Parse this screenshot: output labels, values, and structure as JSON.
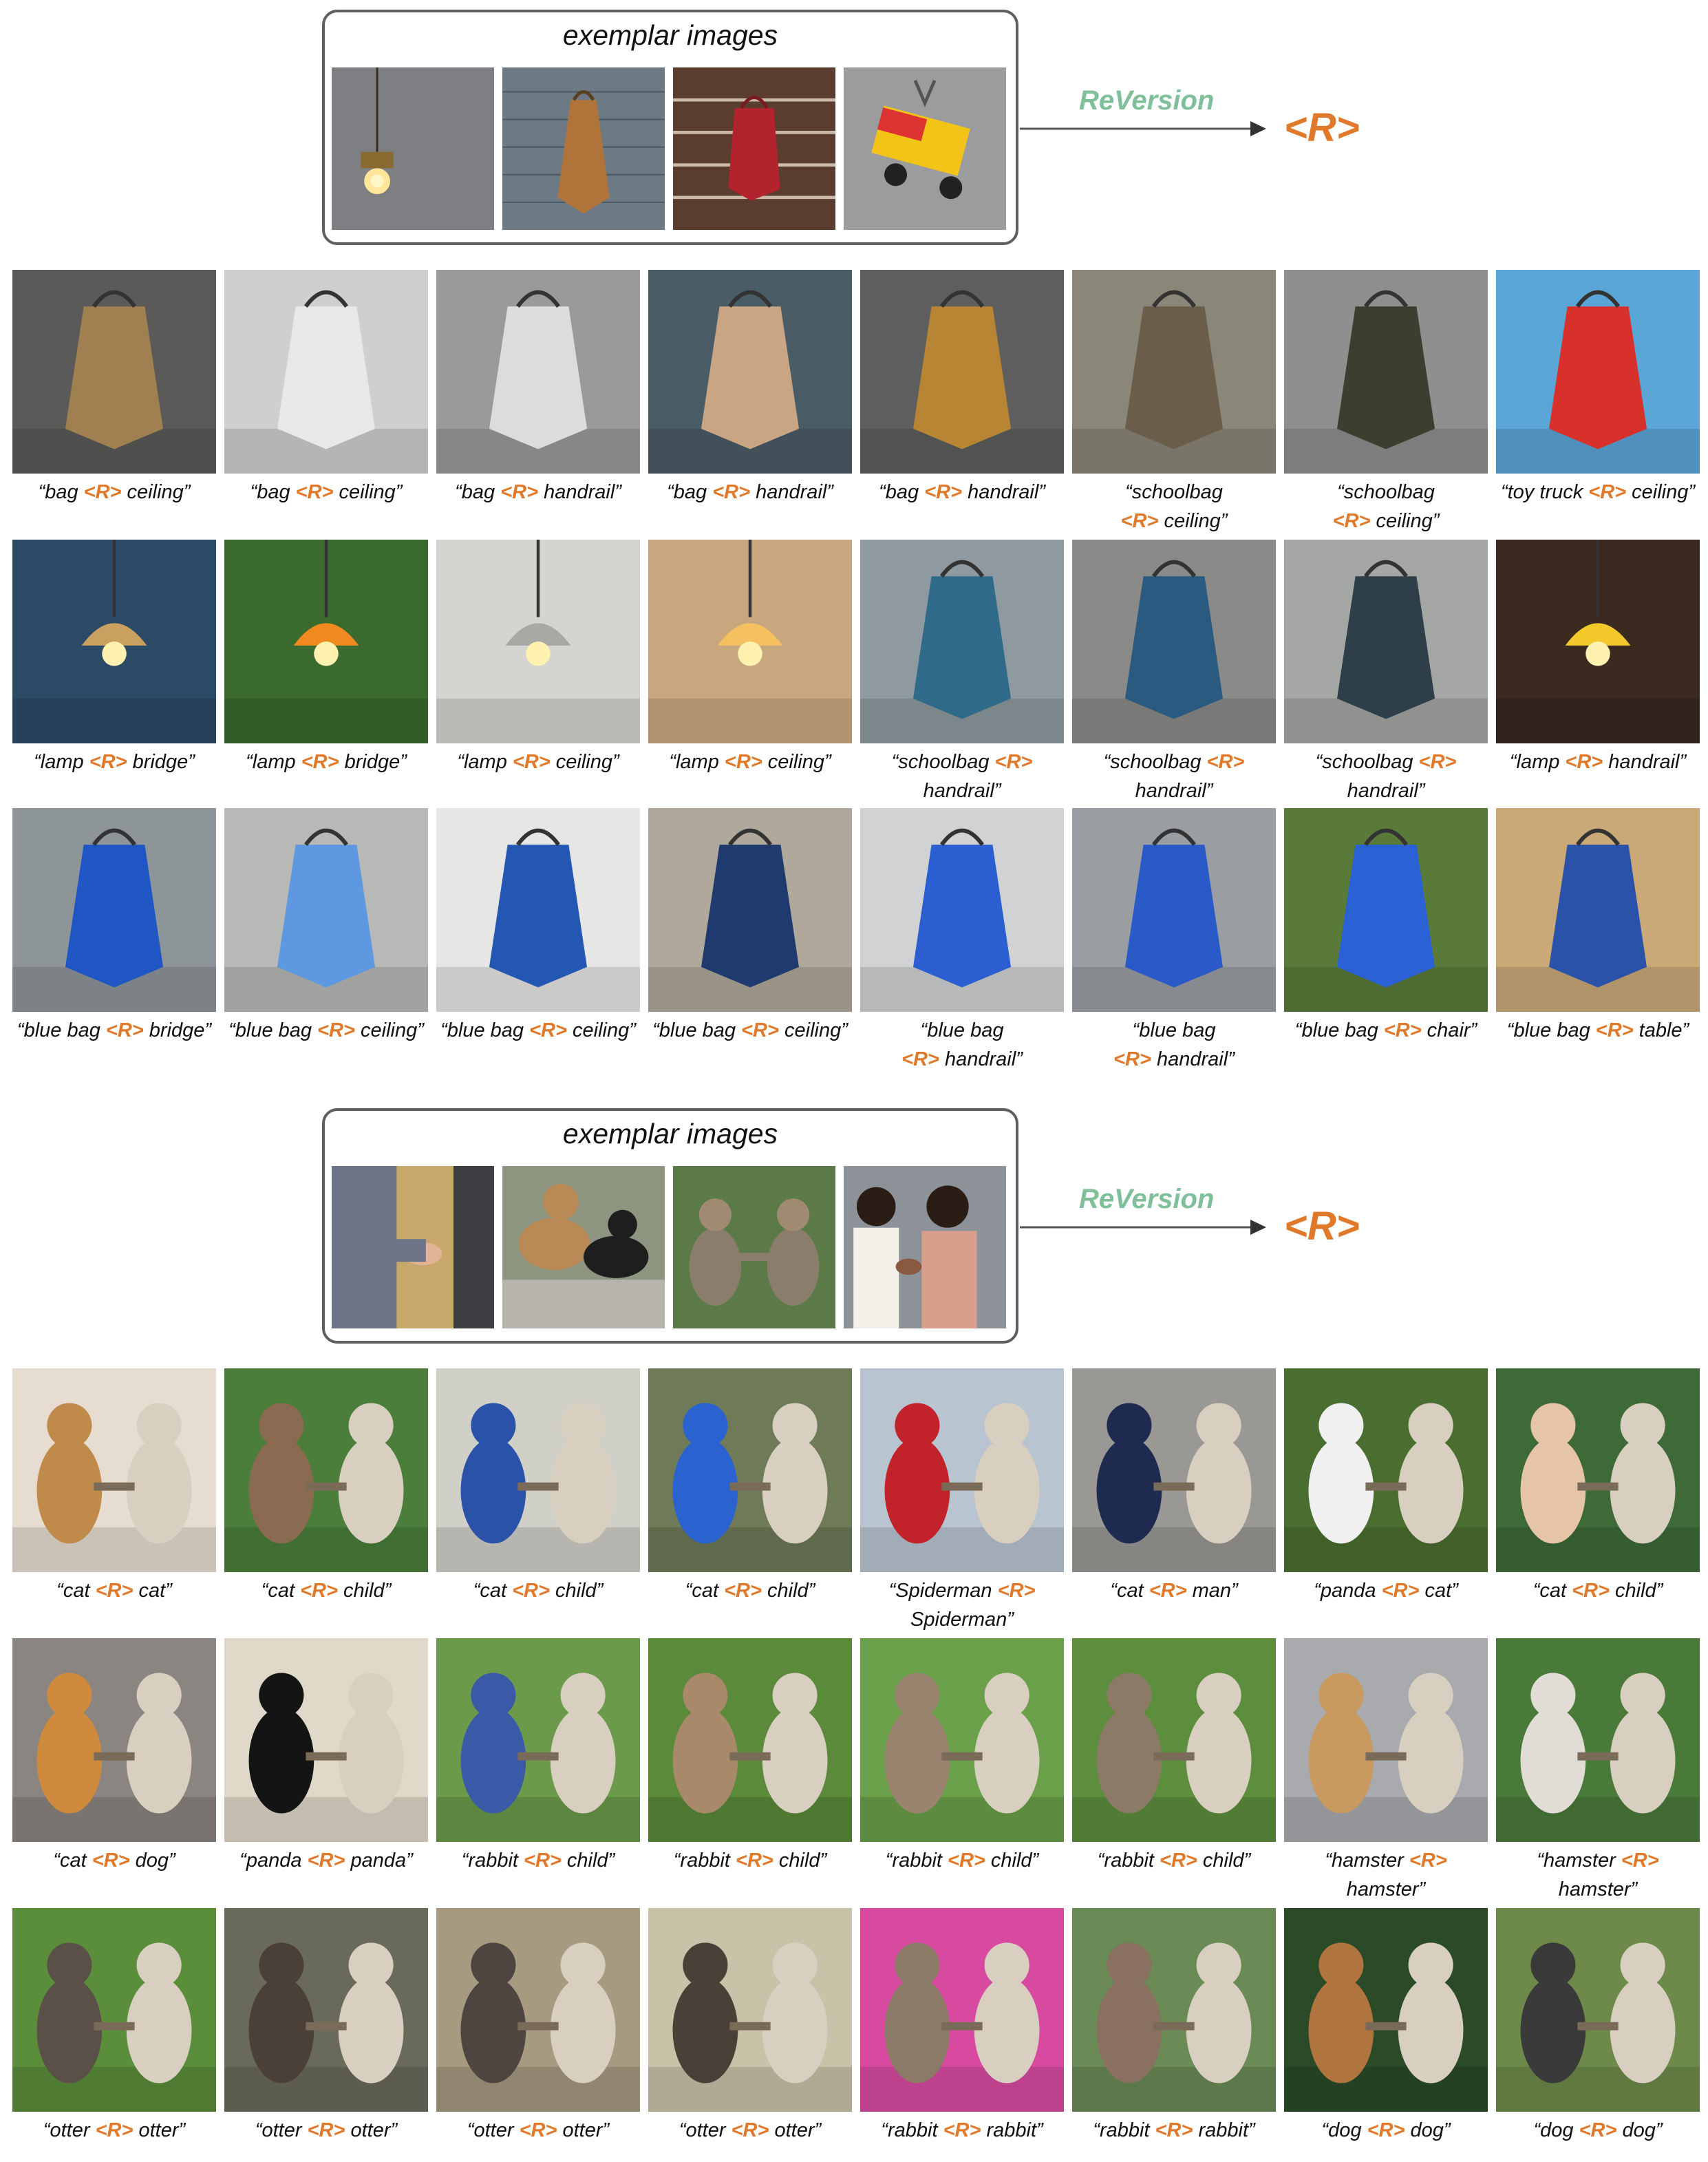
{
  "token": "<R>",
  "method": "ReVersion",
  "colors": {
    "accent": "#e07a2a",
    "method": "#7fbf9a"
  },
  "panels": [
    {
      "exemplar_title": "exemplar images",
      "exemplars": [
        "pendant lamp",
        "brown bag on wall",
        "red bag on fence",
        "toy truck hanging"
      ],
      "rows": [
        [
          {
            "a": "“bag ",
            "b": " ceiling”"
          },
          {
            "a": "“bag ",
            "b": " ceiling”"
          },
          {
            "a": "“bag ",
            "b": " handrail”"
          },
          {
            "a": "“bag ",
            "b": " handrail”"
          },
          {
            "a": "“bag ",
            "b": " handrail”"
          },
          {
            "a": "“schoolbag\n",
            "b": " ceiling”"
          },
          {
            "a": "“schoolbag\n",
            "b": " ceiling”"
          },
          {
            "a": "“toy truck ",
            "b": " ceiling”"
          }
        ],
        [
          {
            "a": "“lamp ",
            "b": " bridge”"
          },
          {
            "a": "“lamp ",
            "b": " bridge”"
          },
          {
            "a": "“lamp ",
            "b": " ceiling”"
          },
          {
            "a": "“lamp ",
            "b": " ceiling”"
          },
          {
            "a": "“schoolbag ",
            "b": "\nhandrail”"
          },
          {
            "a": "“schoolbag ",
            "b": "\nhandrail”"
          },
          {
            "a": "“schoolbag ",
            "b": "\nhandrail”"
          },
          {
            "a": "“lamp ",
            "b": " handrail”"
          }
        ],
        [
          {
            "a": "“blue bag ",
            "b": " bridge”"
          },
          {
            "a": "“blue bag ",
            "b": " ceiling”"
          },
          {
            "a": "“blue bag ",
            "b": " ceiling”"
          },
          {
            "a": "“blue bag ",
            "b": " ceiling”"
          },
          {
            "a": "“blue bag\n",
            "b": " handrail”"
          },
          {
            "a": "“blue bag\n",
            "b": " handrail”"
          },
          {
            "a": "“blue bag ",
            "b": " chair”"
          },
          {
            "a": "“blue bag ",
            "b": " table”"
          }
        ]
      ]
    },
    {
      "exemplar_title": "exemplar images",
      "exemplars": [
        "men shaking hands",
        "dogs shaking paws",
        "monkeys shaking hands",
        "women shaking hands"
      ],
      "rows": [
        [
          {
            "a": "“cat ",
            "b": " cat”"
          },
          {
            "a": "“cat ",
            "b": " child”"
          },
          {
            "a": "“cat ",
            "b": " child”"
          },
          {
            "a": "“cat ",
            "b": " child”"
          },
          {
            "a": "“Spiderman ",
            "b": "\nSpiderman”"
          },
          {
            "a": "“cat ",
            "b": " man”"
          },
          {
            "a": "“panda ",
            "b": " cat”"
          },
          {
            "a": "“cat ",
            "b": " child”"
          }
        ],
        [
          {
            "a": "“cat ",
            "b": " dog”"
          },
          {
            "a": "“panda ",
            "b": " panda”"
          },
          {
            "a": "“rabbit ",
            "b": " child”"
          },
          {
            "a": "“rabbit ",
            "b": " child”"
          },
          {
            "a": "“rabbit ",
            "b": " child”"
          },
          {
            "a": "“rabbit ",
            "b": " child”"
          },
          {
            "a": "“hamster ",
            "b": "\nhamster”"
          },
          {
            "a": "“hamster ",
            "b": "\nhamster”"
          }
        ],
        [
          {
            "a": "“otter ",
            "b": " otter”"
          },
          {
            "a": "“otter ",
            "b": " otter”"
          },
          {
            "a": "“otter ",
            "b": " otter”"
          },
          {
            "a": "“otter ",
            "b": " otter”"
          },
          {
            "a": "“rabbit ",
            "b": " rabbit”"
          },
          {
            "a": "“rabbit ",
            "b": " rabbit”"
          },
          {
            "a": "“dog ",
            "b": " dog”"
          },
          {
            "a": "“dog ",
            "b": " dog”"
          }
        ]
      ]
    }
  ]
}
